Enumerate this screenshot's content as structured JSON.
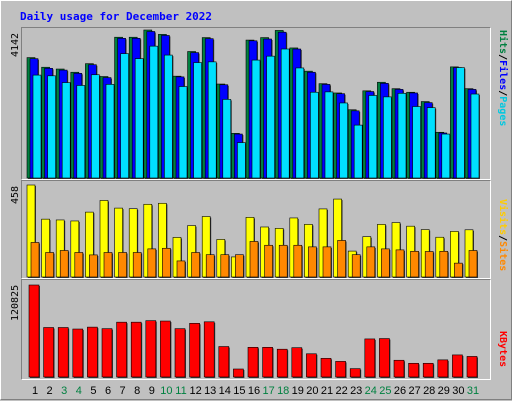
{
  "colors": {
    "hits": "#008040",
    "files": "#0000ff",
    "pages": "#00e0ff",
    "visits": "#ff8800",
    "sites": "#ffff00",
    "kbytes": "#ff0000",
    "weekday": "#000000",
    "weekend": "#008040"
  },
  "chart_data": {
    "type": "bar",
    "title": "Daily usage for December 2022",
    "categories": [
      "1",
      "2",
      "3",
      "4",
      "5",
      "6",
      "7",
      "8",
      "9",
      "10",
      "11",
      "12",
      "13",
      "14",
      "15",
      "16",
      "17",
      "18",
      "19",
      "20",
      "21",
      "22",
      "23",
      "24",
      "25",
      "26",
      "27",
      "28",
      "29",
      "30",
      "31"
    ],
    "weekend_days": [
      "3",
      "4",
      "10",
      "11",
      "17",
      "18",
      "24",
      "25",
      "31"
    ],
    "panels": [
      {
        "ymax_label": "4142",
        "ylim": [
          0,
          4142
        ],
        "legend": [
          "Hits",
          "Files",
          "Pages"
        ],
        "series": [
          {
            "name": "Hits",
            "values": [
              3370,
              3100,
              3050,
              2960,
              3200,
              2840,
              3940,
              3940,
              4142,
              4020,
              2850,
              3540,
              3930,
              2630,
              1250,
              3860,
              3930,
              4130,
              3640,
              2990,
              2640,
              2380,
              1910,
              2440,
              2680,
              2500,
              2400,
              2140,
              1280,
              3110,
              2500
            ]
          },
          {
            "name": "Files",
            "values": [
              3340,
              3070,
              3020,
              2930,
              3170,
              2810,
              3910,
              3910,
              4100,
              3990,
              2830,
              3510,
              3900,
              2610,
              1230,
              3840,
              3890,
              4080,
              3610,
              2960,
              2620,
              2360,
              1880,
              2420,
              2650,
              2480,
              2380,
              2110,
              1260,
              3090,
              2480
            ]
          },
          {
            "name": "Pages",
            "values": [
              2880,
              2860,
              2670,
              2590,
              2890,
              2620,
              3480,
              3340,
              3690,
              3440,
              2560,
              3230,
              3250,
              2200,
              990,
              3300,
              3410,
              3610,
              3080,
              2400,
              2410,
              2100,
              1480,
              2310,
              2270,
              2370,
              2000,
              1970,
              1230,
              3090,
              2350
            ]
          }
        ]
      },
      {
        "ymax_label": "458",
        "ylim": [
          0,
          458
        ],
        "legend": [
          "Visits",
          "Sites"
        ],
        "series": [
          {
            "name": "Visits",
            "values": [
              172,
              122,
              132,
              122,
              110,
              122,
              122,
              122,
              140,
              143,
              80,
              122,
              111,
              111,
              111,
              177,
              158,
              158,
              158,
              150,
              150,
              182,
              111,
              150,
              140,
              135,
              128,
              127,
              128,
              69,
              132
            ]
          },
          {
            "name": "Sites",
            "values": [
              458,
              288,
              284,
              279,
              323,
              381,
              343,
              340,
              362,
              367,
              197,
              256,
              301,
              187,
              100,
              297,
              249,
              242,
              294,
              262,
              339,
              388,
              129,
              201,
              262,
              271,
              253,
              236,
              198,
              227,
              235
            ]
          }
        ]
      },
      {
        "ymax_label": "120825",
        "ylim": [
          0,
          120825
        ],
        "legend": [
          "KBytes"
        ],
        "series": [
          {
            "name": "KBytes",
            "values": [
              120825,
              65000,
              65000,
              63000,
              65500,
              63500,
              72000,
              72000,
              74000,
              73500,
              63500,
              70500,
              72500,
              40000,
              10500,
              39000,
              39000,
              36500,
              38500,
              30500,
              24500,
              20500,
              11000,
              50000,
              50500,
              22000,
              18000,
              18000,
              22500,
              29000,
              27000
            ]
          }
        ]
      }
    ]
  }
}
